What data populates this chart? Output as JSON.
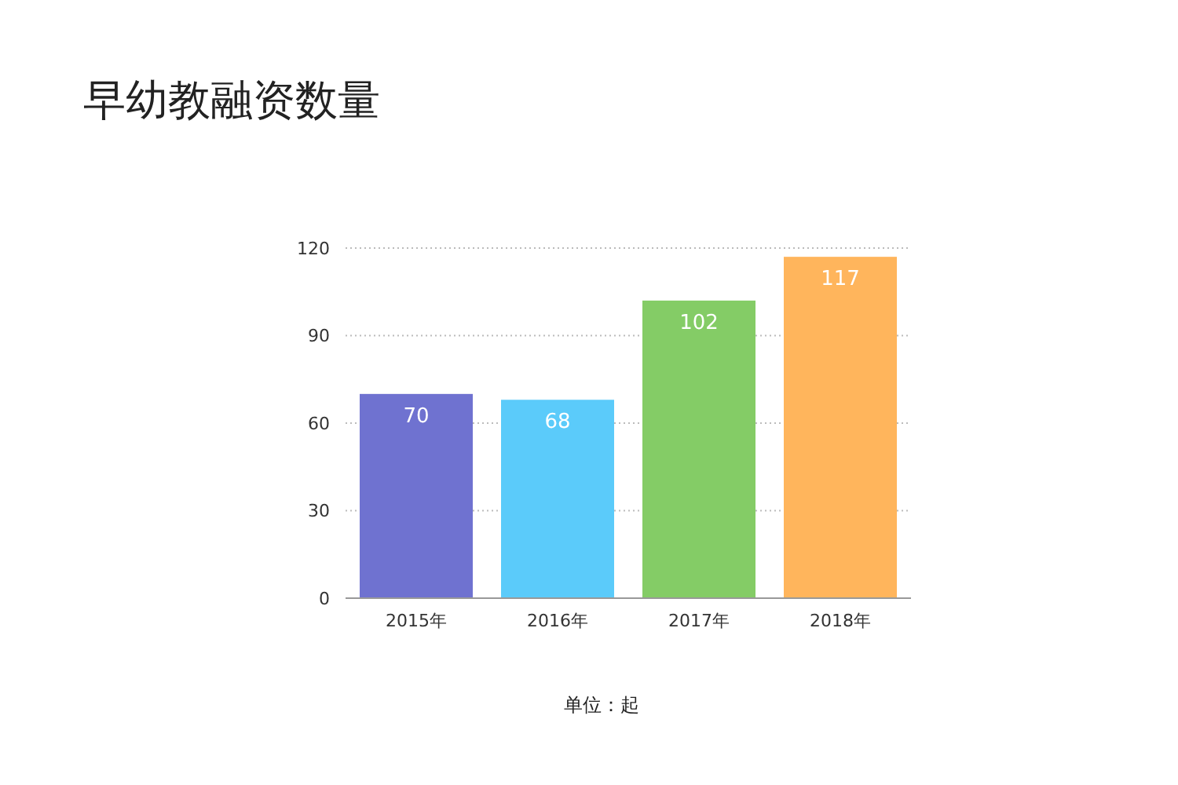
{
  "chart_data": {
    "type": "bar",
    "title": "早幼教融资数量",
    "categories": [
      "2015年",
      "2016年",
      "2017年",
      "2018年"
    ],
    "values": [
      70,
      68,
      102,
      117
    ],
    "colors": [
      "#6f72d0",
      "#5bcbfa",
      "#84cc66",
      "#ffb55c"
    ],
    "ylim": [
      0,
      120
    ],
    "yticks": [
      0,
      30,
      60,
      90,
      120
    ],
    "grid": "y",
    "data_labels": true,
    "annotations": [
      "单位：起"
    ]
  }
}
